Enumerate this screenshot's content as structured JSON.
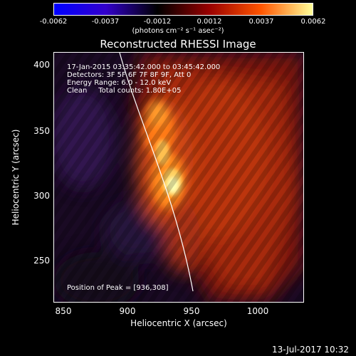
{
  "colorbar": {
    "ticks": [
      "-0.0062",
      "-0.0037",
      "-0.0012",
      "0.0012",
      "0.0037",
      "0.0062"
    ],
    "units": "(photons cm⁻² s⁻¹ asec⁻²)",
    "colors": [
      "#0000ff",
      "#3300cc",
      "#000000",
      "#990000",
      "#ff5500",
      "#ffff99"
    ]
  },
  "title": "Reconstructed RHESSI Image",
  "info": {
    "line1": "17-Jan-2015 03:35:42.000 to 03:45:42.000",
    "line2": "Detectors: 3F 5F 6F 7F 8F 9F, Att 0",
    "line3": "Energy Range: 6.0 - 12.0 keV",
    "line4": "Clean     Total counts: 1.80E+05",
    "peak": "Position of Peak = [936,308]"
  },
  "axes": {
    "xlabel": "Heliocentric X (arcsec)",
    "ylabel": "Heliocentric Y (arcsec)",
    "xticks": [
      "850",
      "900",
      "950",
      "1000"
    ],
    "yticks": [
      "400",
      "350",
      "300",
      "250"
    ]
  },
  "footer": "13-Jul-2017 10:32"
}
